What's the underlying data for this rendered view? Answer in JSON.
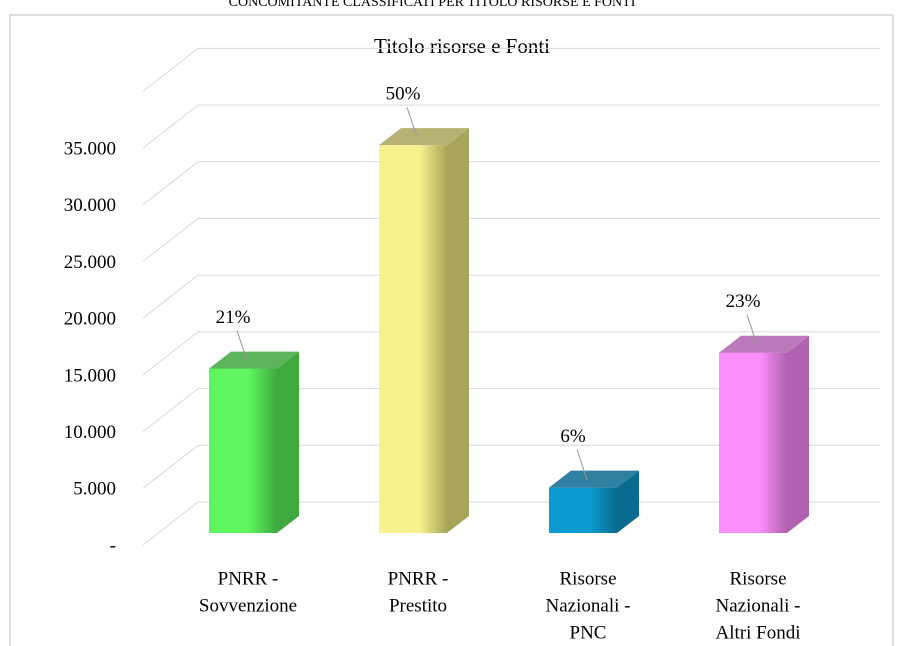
{
  "heading": "CONCOMITANTE CLASSIFICATI PER TITOLO RISORSE E FONTI",
  "chart_data": {
    "type": "bar3d",
    "title": "Titolo risorse e Fonti",
    "categories": [
      [
        "PNRR -",
        "Sovvenzione"
      ],
      [
        "PNRR -",
        "Prestito"
      ],
      [
        "Risorse",
        "Nazionali -",
        "PNC"
      ],
      [
        "Risorse",
        "Nazionali -",
        "Altri Fondi"
      ]
    ],
    "values": [
      14500,
      34200,
      4000,
      15900
    ],
    "data_labels": [
      "21%",
      "50%",
      "6%",
      "23%"
    ],
    "colors": [
      [
        "#5ef55e",
        "#3fa83f"
      ],
      [
        "#f7f28e",
        "#a8a55a"
      ],
      [
        "#0a9bd0",
        "#0a6a90"
      ],
      [
        "#fa8efa",
        "#b062b0"
      ]
    ],
    "ylim": [
      0,
      40000
    ],
    "yticks": [
      {
        "value": 0,
        "label": "-"
      },
      {
        "value": 5000,
        "label": "5.000"
      },
      {
        "value": 10000,
        "label": "10.000"
      },
      {
        "value": 15000,
        "label": "15.000"
      },
      {
        "value": 20000,
        "label": "20.000"
      },
      {
        "value": 25000,
        "label": "25.000"
      },
      {
        "value": 30000,
        "label": "30.000"
      },
      {
        "value": 35000,
        "label": "35.000"
      }
    ],
    "grid": true
  }
}
